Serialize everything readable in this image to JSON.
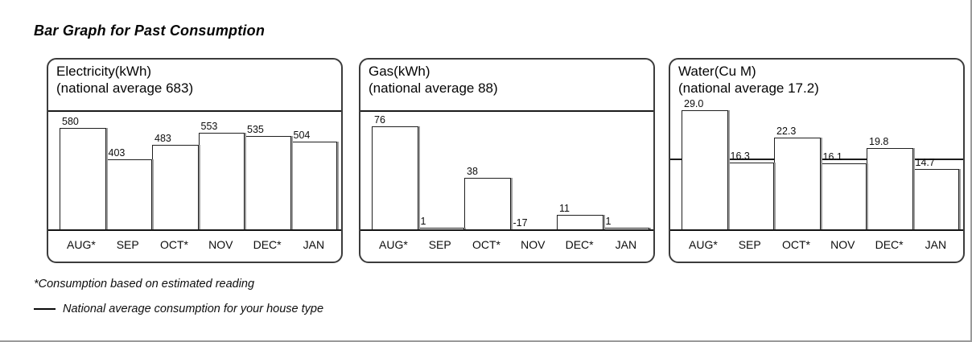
{
  "title": "Bar Graph for Past Consumption",
  "months": [
    "AUG*",
    "SEP",
    "OCT*",
    "NOV",
    "DEC*",
    "JAN"
  ],
  "footnotes": {
    "estimated": "*Consumption based on estimated reading",
    "average_legend": "National average consumption for your house type"
  },
  "colors": {
    "bar_fill": "#ffffff",
    "bar_border": "#1f1f1f",
    "bar_shadow": "#9c9c9c",
    "average_line": "#1c1c1c",
    "panel_border": "#3c3c3c"
  },
  "chart_data": [
    {
      "type": "bar",
      "id": "electricity",
      "title": "Electricity(kWh)",
      "subtitle": "(national average 683)",
      "national_average": 683,
      "categories": [
        "AUG*",
        "SEP",
        "OCT*",
        "NOV",
        "DEC*",
        "JAN"
      ],
      "values": [
        580,
        403,
        483,
        553,
        535,
        504
      ],
      "value_labels": [
        "580",
        "403",
        "483",
        "553",
        "535",
        "504"
      ],
      "ylim": [
        0,
        683
      ],
      "average_line": true,
      "grid": false,
      "legend": "none"
    },
    {
      "type": "bar",
      "id": "gas",
      "title": "Gas(kWh)",
      "subtitle": "(national average 88)",
      "national_average": 88,
      "categories": [
        "AUG*",
        "SEP",
        "OCT*",
        "NOV",
        "DEC*",
        "JAN"
      ],
      "values": [
        76,
        1,
        38,
        -17,
        11,
        1
      ],
      "value_labels": [
        "76",
        "1",
        "38",
        "-17",
        "11",
        "1"
      ],
      "ylim": [
        0,
        88
      ],
      "average_line": true,
      "grid": false,
      "legend": "none"
    },
    {
      "type": "bar",
      "id": "water",
      "title": "Water(Cu M)",
      "subtitle": "(national average 17.2)",
      "national_average": 17.2,
      "categories": [
        "AUG*",
        "SEP",
        "OCT*",
        "NOV",
        "DEC*",
        "JAN"
      ],
      "values": [
        29.0,
        16.3,
        22.3,
        16.1,
        19.8,
        14.7
      ],
      "value_labels": [
        "29.0",
        "16.3",
        "22.3",
        "16.1",
        "19.8",
        "14.7"
      ],
      "ylim": [
        0,
        29.0
      ],
      "average_line": true,
      "grid": false,
      "legend": "none"
    }
  ]
}
